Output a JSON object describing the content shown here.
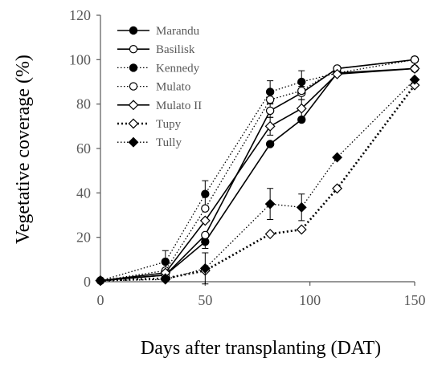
{
  "chart_data": {
    "type": "line",
    "xlabel": "Days after transplanting (DAT)",
    "ylabel": "Vegetative coverage (%)",
    "xlim": [
      0,
      150
    ],
    "ylim": [
      0,
      120
    ],
    "xticks": [
      0,
      50,
      100,
      150
    ],
    "yticks": [
      0,
      20,
      40,
      60,
      80,
      100,
      120
    ],
    "grid": false,
    "legend_position": "top-left",
    "series": [
      {
        "name": "Marandu",
        "line": "solid",
        "marker": "circle",
        "fill": "#000000",
        "x": [
          0,
          31,
          50,
          81,
          96,
          113,
          150
        ],
        "y": [
          0.5,
          3,
          18,
          62,
          73,
          94,
          96
        ],
        "err": [
          0,
          0,
          3,
          0,
          0,
          0,
          0
        ]
      },
      {
        "name": "Basilisk",
        "line": "solid",
        "marker": "circle",
        "fill": "#ffffff",
        "x": [
          0,
          31,
          50,
          81,
          96,
          113,
          150
        ],
        "y": [
          0.5,
          3,
          21,
          77,
          85,
          96,
          100
        ],
        "err": [
          0,
          0,
          0,
          3,
          3,
          0,
          0
        ]
      },
      {
        "name": "Kennedy",
        "line": "dotted",
        "marker": "circle",
        "fill": "#000000",
        "x": [
          0,
          31,
          50,
          81,
          96,
          113,
          150
        ],
        "y": [
          0.5,
          9,
          39.5,
          85.5,
          90,
          94,
          100
        ],
        "err": [
          0,
          5,
          6,
          5,
          5,
          0,
          0
        ]
      },
      {
        "name": "Mulato",
        "line": "dotted",
        "marker": "circle",
        "fill": "#ffffff",
        "x": [
          0,
          31,
          50,
          81,
          96,
          113,
          150
        ],
        "y": [
          0.5,
          5,
          33,
          82,
          86,
          96,
          100
        ],
        "err": [
          0,
          0,
          0,
          0,
          0,
          0,
          0
        ]
      },
      {
        "name": "Mulato II",
        "line": "solid",
        "marker": "diamond",
        "fill": "#ffffff",
        "x": [
          0,
          31,
          50,
          81,
          96,
          113,
          150
        ],
        "y": [
          0.5,
          4,
          27.5,
          70,
          78,
          93.5,
          96
        ],
        "err": [
          0,
          0,
          0,
          4,
          4,
          0,
          0
        ]
      },
      {
        "name": "Tupy",
        "line": "dotted-bold",
        "marker": "diamond",
        "fill": "#ffffff",
        "x": [
          0,
          31,
          50,
          81,
          96,
          113,
          150
        ],
        "y": [
          0.5,
          1.5,
          5,
          21.5,
          23.5,
          42,
          88.5
        ],
        "err": [
          0,
          0,
          0,
          0,
          0,
          0,
          0
        ]
      },
      {
        "name": "Tully",
        "line": "dotted",
        "marker": "diamond",
        "fill": "#000000",
        "x": [
          0,
          31,
          50,
          81,
          96,
          113,
          150
        ],
        "y": [
          0.5,
          1,
          6,
          35,
          33.5,
          56,
          91
        ],
        "err": [
          0,
          0,
          7,
          7,
          6,
          0,
          0
        ]
      }
    ]
  }
}
